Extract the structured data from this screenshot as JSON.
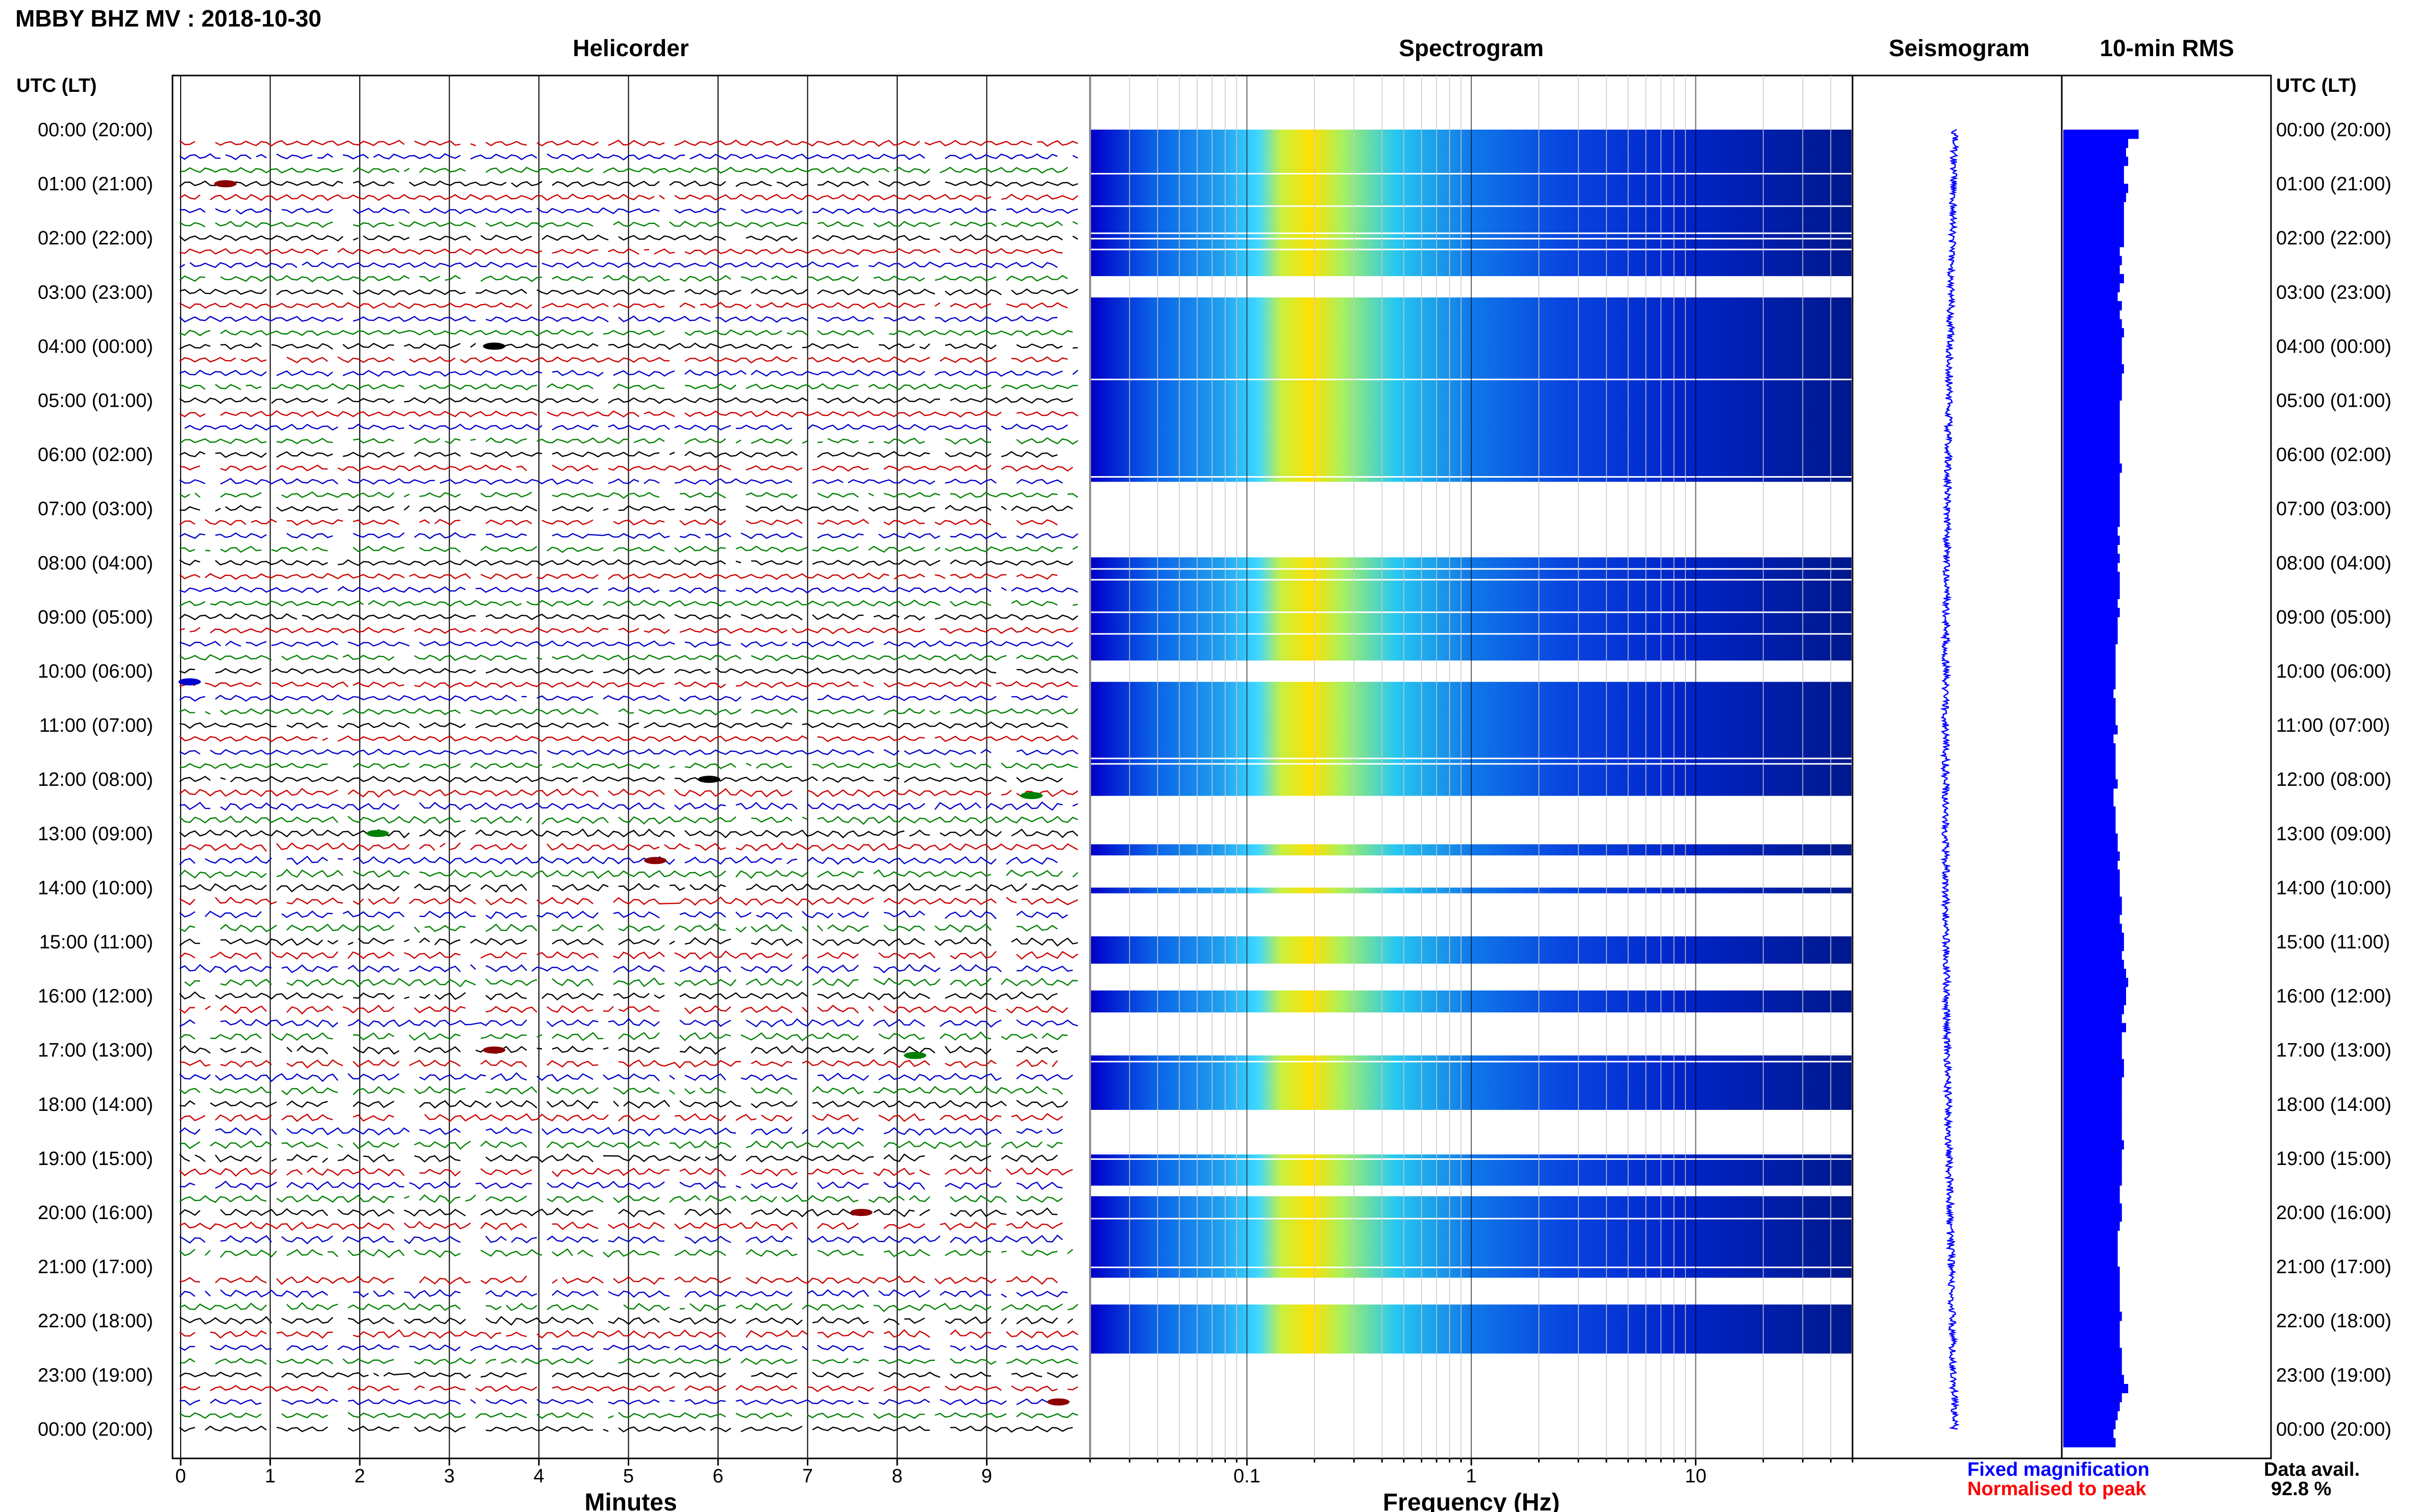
{
  "header": {
    "title": "MBBY BHZ MV : 2018-10-30",
    "utc_label_left": "UTC (LT)",
    "utc_label_right": "UTC (LT)"
  },
  "panels": {
    "helicorder": "Helicorder",
    "spectrogram": "Spectrogram",
    "seismogram": "Seismogram",
    "rms": "10-min RMS"
  },
  "axes": {
    "minutes_label": "Minutes",
    "frequency_label": "Frequency (Hz)",
    "minute_ticks": [
      "0",
      "1",
      "2",
      "3",
      "4",
      "5",
      "6",
      "7",
      "8",
      "9"
    ],
    "frequency_ticks": [
      "0.1",
      "1",
      "10"
    ]
  },
  "hours": [
    "00:00 (20:00)",
    "01:00 (21:00)",
    "02:00 (22:00)",
    "03:00 (23:00)",
    "04:00 (00:00)",
    "05:00 (01:00)",
    "06:00 (02:00)",
    "07:00 (03:00)",
    "08:00 (04:00)",
    "09:00 (05:00)",
    "10:00 (06:00)",
    "11:00 (07:00)",
    "12:00 (08:00)",
    "13:00 (09:00)",
    "14:00 (10:00)",
    "15:00 (11:00)",
    "16:00 (12:00)",
    "17:00 (13:00)",
    "18:00 (14:00)",
    "19:00 (15:00)",
    "20:00 (16:00)",
    "21:00 (17:00)",
    "22:00 (18:00)",
    "23:00 (19:00)",
    "00:00 (20:00)"
  ],
  "legend": {
    "fixed": "Fixed magnification",
    "normalised": "Normalised to peak",
    "fixed_color": "#0000ff",
    "normalised_color": "#ff0000"
  },
  "availability": {
    "label": "Data avail.",
    "value": "92.8 %"
  },
  "chart_data": {
    "type": "heatmap",
    "station": "MBBY",
    "channel": "BHZ",
    "network": "MV",
    "date": "2018-10-30",
    "helicorder": {
      "x_range_minutes": [
        0,
        10
      ],
      "trace_colors": [
        "#000000",
        "#cc0000",
        "#0000cc",
        "#008000"
      ]
    },
    "spectrogram": {
      "x_scale": "log",
      "x_range_hz": [
        0.02,
        50
      ],
      "colormap": [
        "#00008b",
        "#0000ff",
        "#00bfff",
        "#66ffcc",
        "#ffff00"
      ],
      "data_gaps_utc_hours": [
        [
          2.7,
          3.1
        ],
        [
          6.5,
          7.9
        ],
        [
          9.8,
          10.2
        ],
        [
          12.3,
          13.2
        ],
        [
          13.4,
          14.0
        ],
        [
          14.1,
          14.9
        ],
        [
          15.4,
          15.9
        ],
        [
          16.3,
          17.1
        ],
        [
          18.1,
          18.9
        ],
        [
          19.5,
          19.7
        ],
        [
          21.2,
          21.7
        ],
        [
          22.6,
          24.2
        ]
      ]
    },
    "seismogram": {
      "color": "#0000ff",
      "note_hours": [
        0,
        24
      ]
    },
    "rms_10min": {
      "color": "#0000ff",
      "values_relative": [
        0.36,
        0.31,
        0.3,
        0.31,
        0.29,
        0.29,
        0.31,
        0.3,
        0.29,
        0.29,
        0.29,
        0.29,
        0.29,
        0.27,
        0.28,
        0.27,
        0.29,
        0.27,
        0.26,
        0.28,
        0.27,
        0.28,
        0.29,
        0.28,
        0.28,
        0.28,
        0.29,
        0.28,
        0.28,
        0.28,
        0.27,
        0.27,
        0.27,
        0.27,
        0.27,
        0.27,
        0.27,
        0.28,
        0.27,
        0.27,
        0.27,
        0.27,
        0.27,
        0.27,
        0.26,
        0.27,
        0.26,
        0.27,
        0.26,
        0.27,
        0.27,
        0.27,
        0.26,
        0.27,
        0.26,
        0.26,
        0.26,
        0.25,
        0.25,
        0.25,
        0.25,
        0.25,
        0.24,
        0.25,
        0.25,
        0.25,
        0.26,
        0.24,
        0.25,
        0.25,
        0.25,
        0.25,
        0.26,
        0.24,
        0.24,
        0.25,
        0.25,
        0.25,
        0.26,
        0.26,
        0.27,
        0.26,
        0.27,
        0.27,
        0.27,
        0.28,
        0.28,
        0.27,
        0.28,
        0.29,
        0.29,
        0.28,
        0.29,
        0.3,
        0.31,
        0.3,
        0.3,
        0.29,
        0.28,
        0.3,
        0.28,
        0.28,
        0.28,
        0.29,
        0.29,
        0.28,
        0.28,
        0.28,
        0.28,
        0.28,
        0.28,
        0.28,
        0.29,
        0.28,
        0.28,
        0.28,
        0.28,
        0.27,
        0.27,
        0.28,
        0.28,
        0.27,
        0.26,
        0.26,
        0.26,
        0.26,
        0.27,
        0.27,
        0.27,
        0.27,
        0.27,
        0.28,
        0.27,
        0.27,
        0.27,
        0.28,
        0.28,
        0.28,
        0.29,
        0.31,
        0.28,
        0.27,
        0.26,
        0.25,
        0.24,
        0.25
      ]
    }
  }
}
